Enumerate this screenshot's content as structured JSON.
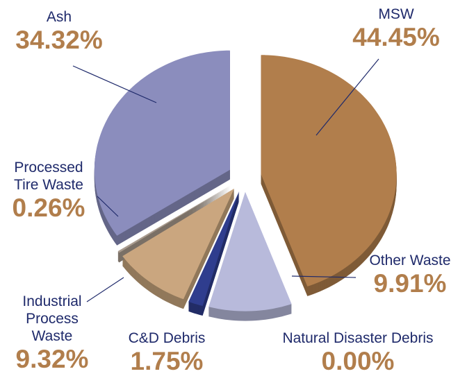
{
  "chart_data": {
    "type": "pie",
    "categories": [
      "MSW",
      "Other Waste",
      "Natural Disaster Debris",
      "C&D Debris",
      "Industrial Process Waste",
      "Processed Tire Waste",
      "Ash"
    ],
    "values": [
      44.45,
      9.91,
      0.0,
      1.75,
      9.32,
      0.26,
      34.32
    ],
    "value_labels": [
      "44.45%",
      "9.91%",
      "0.00%",
      "1.75%",
      "9.32%",
      "0.26%",
      "34.32%"
    ],
    "colors": [
      "#b17e4c",
      "#b8badb",
      "#9a9cc6",
      "#2f3d8e",
      "#caa67f",
      "#a99b8e",
      "#8b8dbd"
    ]
  }
}
